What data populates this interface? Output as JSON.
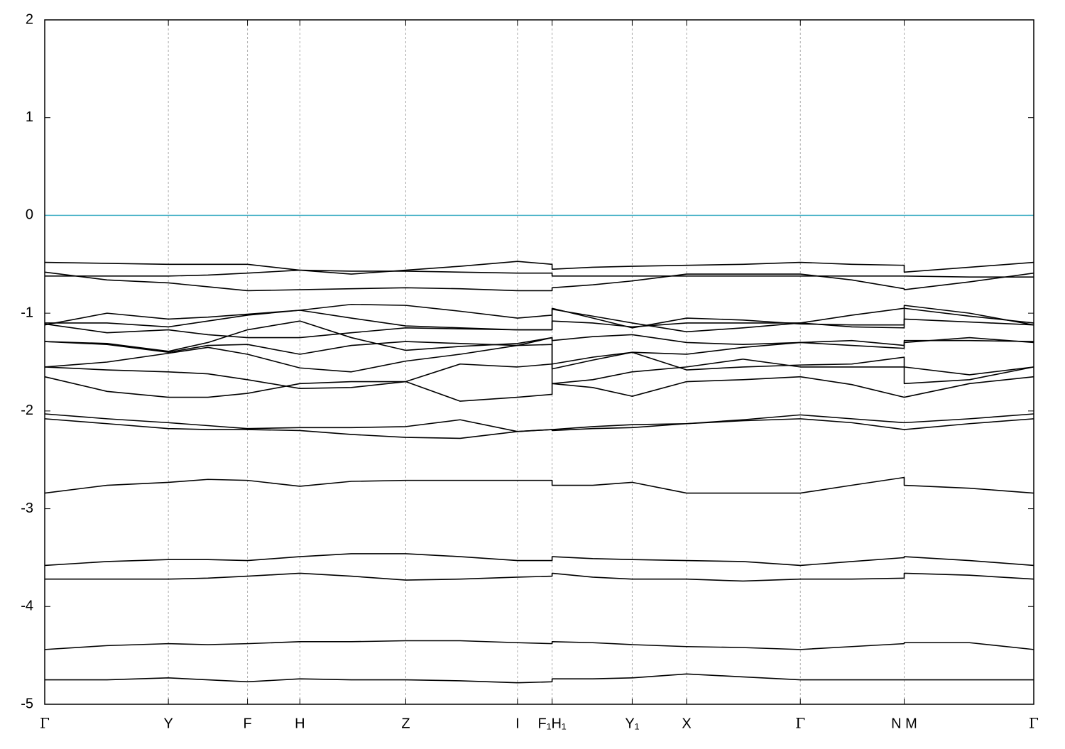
{
  "chart_data": {
    "type": "line",
    "x": [
      0,
      0.063,
      0.125,
      0.165,
      0.205,
      0.258,
      0.31,
      0.365,
      0.42,
      0.478,
      0.513,
      0.513,
      0.554,
      0.594,
      0.649,
      0.706,
      0.764,
      0.816,
      0.869,
      0.869,
      0.935,
      1
    ],
    "color": "#000000",
    "series": [
      {
        "values": [
          -4.75,
          -4.75,
          -4.73,
          -4.75,
          -4.77,
          -4.74,
          -4.75,
          -4.75,
          -4.76,
          -4.78,
          -4.77,
          -4.74,
          -4.74,
          -4.73,
          -4.69,
          -4.72,
          -4.75,
          -4.75,
          -4.75,
          -4.75,
          -4.75,
          -4.75
        ]
      },
      {
        "values": [
          -4.44,
          -4.4,
          -4.38,
          -4.39,
          -4.38,
          -4.36,
          -4.36,
          -4.35,
          -4.35,
          -4.37,
          -4.38,
          -4.36,
          -4.37,
          -4.39,
          -4.41,
          -4.42,
          -4.44,
          -4.41,
          -4.38,
          -4.37,
          -4.37,
          -4.44
        ]
      },
      {
        "values": [
          -3.72,
          -3.72,
          -3.72,
          -3.71,
          -3.69,
          -3.66,
          -3.69,
          -3.73,
          -3.72,
          -3.7,
          -3.69,
          -3.66,
          -3.7,
          -3.72,
          -3.72,
          -3.74,
          -3.72,
          -3.72,
          -3.71,
          -3.66,
          -3.68,
          -3.72
        ]
      },
      {
        "values": [
          -3.58,
          -3.54,
          -3.52,
          -3.52,
          -3.53,
          -3.49,
          -3.46,
          -3.46,
          -3.49,
          -3.53,
          -3.53,
          -3.49,
          -3.51,
          -3.52,
          -3.53,
          -3.54,
          -3.58,
          -3.54,
          -3.5,
          -3.49,
          -3.53,
          -3.58
        ]
      },
      {
        "values": [
          -2.84,
          -2.76,
          -2.73,
          -2.7,
          -2.71,
          -2.77,
          -2.72,
          -2.71,
          -2.71,
          -2.71,
          -2.71,
          -2.76,
          -2.76,
          -2.73,
          -2.84,
          -2.84,
          -2.84,
          -2.76,
          -2.68,
          -2.76,
          -2.79,
          -2.84
        ]
      },
      {
        "values": [
          -2.03,
          -2.08,
          -2.12,
          -2.15,
          -2.18,
          -2.17,
          -2.17,
          -2.16,
          -2.09,
          -2.21,
          -2.19,
          -2.19,
          -2.16,
          -2.14,
          -2.13,
          -2.09,
          -2.04,
          -2.08,
          -2.12,
          -2.12,
          -2.08,
          -2.03
        ]
      },
      {
        "values": [
          -2.08,
          -2.13,
          -2.18,
          -2.19,
          -2.19,
          -2.2,
          -2.24,
          -2.27,
          -2.28,
          -2.21,
          -2.19,
          -2.2,
          -2.18,
          -2.17,
          -2.13,
          -2.1,
          -2.08,
          -2.12,
          -2.19,
          -2.19,
          -2.13,
          -2.08
        ]
      },
      {
        "values": [
          -1.65,
          -1.8,
          -1.86,
          -1.86,
          -1.82,
          -1.72,
          -1.7,
          -1.7,
          -1.9,
          -1.86,
          -1.83,
          -1.72,
          -1.76,
          -1.85,
          -1.7,
          -1.68,
          -1.65,
          -1.73,
          -1.86,
          -1.86,
          -1.72,
          -1.65
        ]
      },
      {
        "values": [
          -1.55,
          -1.58,
          -1.6,
          -1.62,
          -1.68,
          -1.77,
          -1.76,
          -1.7,
          -1.52,
          -1.55,
          -1.52,
          -1.57,
          -1.48,
          -1.4,
          -1.58,
          -1.55,
          -1.53,
          -1.52,
          -1.45,
          -1.72,
          -1.68,
          -1.55
        ]
      },
      {
        "values": [
          -1.55,
          -1.5,
          -1.41,
          -1.35,
          -1.42,
          -1.56,
          -1.6,
          -1.49,
          -1.42,
          -1.33,
          -1.32,
          -1.72,
          -1.68,
          -1.6,
          -1.55,
          -1.47,
          -1.55,
          -1.55,
          -1.55,
          -1.55,
          -1.63,
          -1.55
        ]
      },
      {
        "values": [
          -1.29,
          -1.32,
          -1.4,
          -1.33,
          -1.32,
          -1.42,
          -1.33,
          -1.29,
          -1.31,
          -1.33,
          -1.25,
          -1.52,
          -1.45,
          -1.4,
          -1.42,
          -1.35,
          -1.3,
          -1.33,
          -1.36,
          -1.3,
          -1.25,
          -1.3
        ]
      },
      {
        "values": [
          -1.29,
          -1.31,
          -1.39,
          -1.3,
          -1.17,
          -1.08,
          -1.25,
          -1.38,
          -1.34,
          -1.31,
          -1.25,
          -1.28,
          -1.24,
          -1.22,
          -1.3,
          -1.32,
          -1.3,
          -1.28,
          -1.33,
          -1.28,
          -1.28,
          -1.29
        ]
      },
      {
        "values": [
          -1.11,
          -1.2,
          -1.17,
          -1.22,
          -1.25,
          -1.25,
          -1.2,
          -1.15,
          -1.16,
          -1.17,
          -1.17,
          -1.08,
          -1.1,
          -1.14,
          -1.1,
          -1.1,
          -1.1,
          -1.14,
          -1.15,
          -1.06,
          -1.09,
          -1.12
        ]
      },
      {
        "values": [
          -1.1,
          -1.1,
          -1.14,
          -1.08,
          -1.02,
          -0.97,
          -0.91,
          -0.92,
          -0.98,
          -1.05,
          -1.02,
          -0.96,
          -1.03,
          -1.1,
          -1.19,
          -1.15,
          -1.1,
          -1.02,
          -0.95,
          -0.92,
          -1.0,
          -1.12
        ]
      },
      {
        "values": [
          -1.12,
          -1.0,
          -1.06,
          -1.04,
          -1.01,
          -0.97,
          -1.05,
          -1.13,
          -1.15,
          -1.17,
          -1.17,
          -0.95,
          -1.05,
          -1.15,
          -1.05,
          -1.07,
          -1.11,
          -1.12,
          -1.12,
          -0.95,
          -1.03,
          -1.1
        ]
      },
      {
        "values": [
          -0.58,
          -0.66,
          -0.69,
          -0.73,
          -0.77,
          -0.76,
          -0.75,
          -0.74,
          -0.75,
          -0.77,
          -0.77,
          -0.74,
          -0.71,
          -0.67,
          -0.6,
          -0.6,
          -0.6,
          -0.66,
          -0.75,
          -0.76,
          -0.68,
          -0.59
        ]
      },
      {
        "values": [
          -0.62,
          -0.62,
          -0.62,
          -0.61,
          -0.59,
          -0.56,
          -0.57,
          -0.57,
          -0.58,
          -0.59,
          -0.59,
          -0.62,
          -0.62,
          -0.62,
          -0.62,
          -0.62,
          -0.62,
          -0.62,
          -0.62,
          -0.62,
          -0.63,
          -0.63
        ]
      },
      {
        "values": [
          -0.48,
          -0.49,
          -0.5,
          -0.5,
          -0.5,
          -0.56,
          -0.6,
          -0.56,
          -0.52,
          -0.47,
          -0.5,
          -0.55,
          -0.53,
          -0.52,
          -0.51,
          -0.5,
          -0.48,
          -0.5,
          -0.51,
          -0.58,
          -0.53,
          -0.48
        ]
      }
    ],
    "xlim": [
      0,
      1
    ],
    "xticks": [
      {
        "value": 0,
        "label": "Γ"
      },
      {
        "value": 0.125,
        "label": "Y"
      },
      {
        "value": 0.205,
        "label": "F"
      },
      {
        "value": 0.258,
        "label": "H"
      },
      {
        "value": 0.365,
        "label": "Z"
      },
      {
        "value": 0.478,
        "label": "I"
      },
      {
        "value": 0.513,
        "label": "F₁H₁"
      },
      {
        "value": 0.594,
        "label": "Y₁"
      },
      {
        "value": 0.649,
        "label": "X"
      },
      {
        "value": 0.764,
        "label": "Γ"
      },
      {
        "value": 0.869,
        "label": "N M"
      },
      {
        "value": 1,
        "label": "Γ"
      }
    ],
    "ylim": [
      -5,
      2
    ],
    "yticks": [
      -5,
      -4,
      -3,
      -2,
      -1,
      0,
      1,
      2
    ],
    "grid": true,
    "reference_line": {
      "value": 0,
      "color": "#4bb3c8"
    }
  }
}
